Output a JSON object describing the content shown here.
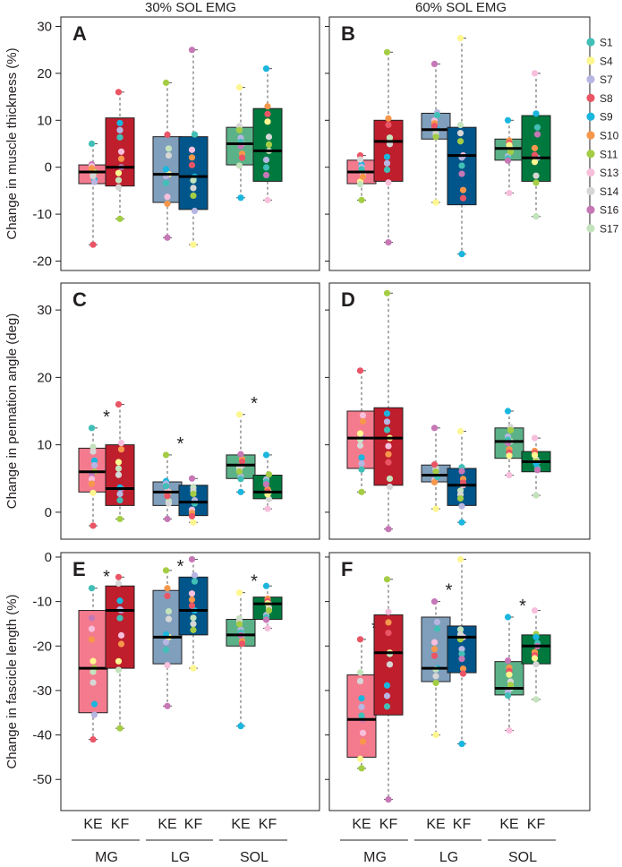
{
  "chart_data": {
    "type": "box",
    "column_titles": [
      "30% SOL EMG",
      "60% SOL EMG"
    ],
    "conditions": [
      "KE",
      "KF"
    ],
    "groups": [
      "MG",
      "LG",
      "SOL"
    ],
    "box_colors": {
      "MG": {
        "KE": "#f47b8e",
        "KF": "#bf1e2d"
      },
      "LG": {
        "KE": "#7f9fbc",
        "KF": "#00558a"
      },
      "SOL": {
        "KE": "#5bb289",
        "KF": "#00793f"
      }
    },
    "legend": {
      "placement": "right",
      "entries": [
        {
          "label": "S1",
          "color": "#41bfb6"
        },
        {
          "label": "S4",
          "color": "#fef68f"
        },
        {
          "label": "S7",
          "color": "#b7b6e2"
        },
        {
          "label": "S8",
          "color": "#ea5566"
        },
        {
          "label": "S9",
          "color": "#1ab6de"
        },
        {
          "label": "S10",
          "color": "#f6974b"
        },
        {
          "label": "S11",
          "color": "#a4cd45"
        },
        {
          "label": "S13",
          "color": "#f7bfdc"
        },
        {
          "label": "S14",
          "color": "#d7d6d6"
        },
        {
          "label": "S16",
          "color": "#c677b6"
        },
        {
          "label": "S17",
          "color": "#c4e3bd"
        }
      ]
    },
    "rows": [
      {
        "ylabel": "Change in muscle thickness (%)",
        "ylim": [
          -22,
          32
        ],
        "yticks": [
          -20,
          -10,
          0,
          10,
          20,
          30
        ],
        "panels": [
          {
            "label": "A",
            "boxes": [
              {
                "group": "MG",
                "cond": "KE",
                "q1": -3.5,
                "median": -1,
                "q3": 0.5,
                "min": -16.5,
                "max": 5,
                "sig": false
              },
              {
                "group": "MG",
                "cond": "KF",
                "q1": -4,
                "median": 0,
                "q3": 10.5,
                "min": -11,
                "max": 16,
                "sig": false
              },
              {
                "group": "LG",
                "cond": "KE",
                "q1": -7.5,
                "median": -1.5,
                "q3": 6.5,
                "min": -15,
                "max": 18,
                "sig": false
              },
              {
                "group": "LG",
                "cond": "KF",
                "q1": -9,
                "median": -2,
                "q3": 6.5,
                "min": -16.5,
                "max": 25,
                "sig": false
              },
              {
                "group": "SOL",
                "cond": "KE",
                "q1": 0.5,
                "median": 5,
                "q3": 8.5,
                "min": -6.5,
                "max": 17,
                "sig": false
              },
              {
                "group": "SOL",
                "cond": "KF",
                "q1": -3,
                "median": 3.5,
                "q3": 12.5,
                "min": -7,
                "max": 21,
                "sig": false
              }
            ]
          },
          {
            "label": "B",
            "boxes": [
              {
                "group": "MG",
                "cond": "KE",
                "q1": -3.5,
                "median": -1,
                "q3": 1.5,
                "min": -7,
                "max": 2.5,
                "sig": false
              },
              {
                "group": "MG",
                "cond": "KF",
                "q1": -3,
                "median": 5.5,
                "q3": 10,
                "min": -16,
                "max": 24.5,
                "sig": false
              },
              {
                "group": "LG",
                "cond": "KE",
                "q1": 6,
                "median": 8,
                "q3": 11.5,
                "min": -7.5,
                "max": 22,
                "sig": false
              },
              {
                "group": "LG",
                "cond": "KF",
                "q1": -8,
                "median": 2.5,
                "q3": 8.5,
                "min": -18.5,
                "max": 27.5,
                "sig": false
              },
              {
                "group": "SOL",
                "cond": "KE",
                "q1": 1.5,
                "median": 4,
                "q3": 6,
                "min": -5.5,
                "max": 10,
                "sig": false
              },
              {
                "group": "SOL",
                "cond": "KF",
                "q1": -3,
                "median": 2,
                "q3": 11,
                "min": -10.5,
                "max": 20,
                "sig": false
              }
            ]
          }
        ]
      },
      {
        "ylabel": "Change in  pennation angle (deg)",
        "ylim": [
          -4,
          34
        ],
        "yticks": [
          0,
          10,
          20,
          30
        ],
        "panels": [
          {
            "label": "C",
            "boxes": [
              {
                "group": "MG",
                "cond": "KE",
                "q1": 3,
                "median": 6,
                "q3": 9.5,
                "min": -2,
                "max": 12.5,
                "sig": true
              },
              {
                "group": "MG",
                "cond": "KF",
                "q1": 1,
                "median": 3.5,
                "q3": 10,
                "min": -1,
                "max": 16,
                "sig": false
              },
              {
                "group": "LG",
                "cond": "KE",
                "q1": 1,
                "median": 3,
                "q3": 4.5,
                "min": -1,
                "max": 8.5,
                "sig": true
              },
              {
                "group": "LG",
                "cond": "KF",
                "q1": -0.5,
                "median": 1.5,
                "q3": 4,
                "min": -1.5,
                "max": 5,
                "sig": false
              },
              {
                "group": "SOL",
                "cond": "KE",
                "q1": 5,
                "median": 7,
                "q3": 8.5,
                "min": 3,
                "max": 14.5,
                "sig": true
              },
              {
                "group": "SOL",
                "cond": "KF",
                "q1": 2,
                "median": 3,
                "q3": 5.5,
                "min": 0.5,
                "max": 8.5,
                "sig": false
              }
            ]
          },
          {
            "label": "D",
            "boxes": [
              {
                "group": "MG",
                "cond": "KE",
                "q1": 6.5,
                "median": 11,
                "q3": 15,
                "min": 3,
                "max": 21,
                "sig": false
              },
              {
                "group": "MG",
                "cond": "KF",
                "q1": 4,
                "median": 11,
                "q3": 15.5,
                "min": -2.5,
                "max": 32.5,
                "sig": false
              },
              {
                "group": "LG",
                "cond": "KE",
                "q1": 4.5,
                "median": 5.5,
                "q3": 7,
                "min": 0.5,
                "max": 12.5,
                "sig": false
              },
              {
                "group": "LG",
                "cond": "KF",
                "q1": 1,
                "median": 4,
                "q3": 6.5,
                "min": -1.5,
                "max": 12,
                "sig": false
              },
              {
                "group": "SOL",
                "cond": "KE",
                "q1": 8,
                "median": 10.5,
                "q3": 12.5,
                "min": 5.5,
                "max": 15,
                "sig": false
              },
              {
                "group": "SOL",
                "cond": "KF",
                "q1": 6,
                "median": 7.5,
                "q3": 9,
                "min": 2.5,
                "max": 11,
                "sig": false
              }
            ]
          }
        ]
      },
      {
        "ylabel": "Change in fascicle length (%)",
        "ylim": [
          -57,
          1
        ],
        "yticks": [
          -50,
          -40,
          -30,
          -20,
          -10,
          0
        ],
        "panels": [
          {
            "label": "E",
            "boxes": [
              {
                "group": "MG",
                "cond": "KE",
                "q1": -35,
                "median": -25,
                "q3": -12,
                "min": -41,
                "max": -7,
                "sig": true
              },
              {
                "group": "MG",
                "cond": "KF",
                "q1": -25,
                "median": -12,
                "q3": -6.5,
                "min": -38.5,
                "max": -4.5,
                "sig": false
              },
              {
                "group": "LG",
                "cond": "KE",
                "q1": -24,
                "median": -18,
                "q3": -7.5,
                "min": -33.5,
                "max": -3,
                "sig": true
              },
              {
                "group": "LG",
                "cond": "KF",
                "q1": -17.5,
                "median": -12,
                "q3": -4.5,
                "min": -25,
                "max": -0.5,
                "sig": false
              },
              {
                "group": "SOL",
                "cond": "KE",
                "q1": -20,
                "median": -17.5,
                "q3": -14,
                "min": -38,
                "max": -8,
                "sig": true
              },
              {
                "group": "SOL",
                "cond": "KF",
                "q1": -14,
                "median": -10.5,
                "q3": -9,
                "min": -16,
                "max": -6.5,
                "sig": false
              }
            ]
          },
          {
            "label": "F",
            "boxes": [
              {
                "group": "MG",
                "cond": "KE",
                "q1": -45,
                "median": -36.5,
                "q3": -26.5,
                "min": -47.5,
                "max": -18.5,
                "sig": true
              },
              {
                "group": "MG",
                "cond": "KF",
                "q1": -35.5,
                "median": -21.5,
                "q3": -13,
                "min": -54.5,
                "max": -5,
                "sig": false
              },
              {
                "group": "LG",
                "cond": "KE",
                "q1": -28,
                "median": -25,
                "q3": -13.5,
                "min": -40,
                "max": -10,
                "sig": true
              },
              {
                "group": "LG",
                "cond": "KF",
                "q1": -26,
                "median": -18,
                "q3": -15.5,
                "min": -42,
                "max": -0.5,
                "sig": false
              },
              {
                "group": "SOL",
                "cond": "KE",
                "q1": -31,
                "median": -29.5,
                "q3": -23.5,
                "min": -39,
                "max": -13.5,
                "sig": true
              },
              {
                "group": "SOL",
                "cond": "KF",
                "q1": -24,
                "median": -20,
                "q3": -17.5,
                "min": -32,
                "max": -12,
                "sig": false
              }
            ]
          }
        ]
      }
    ]
  }
}
